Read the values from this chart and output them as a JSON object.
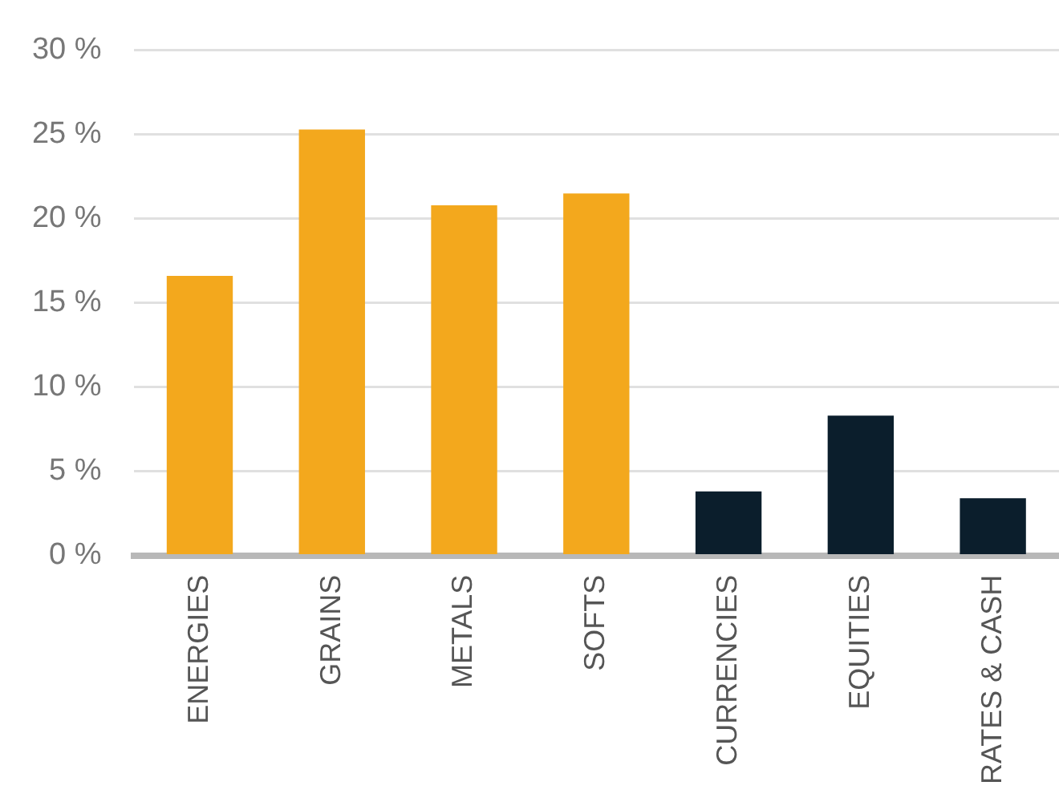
{
  "chart_data": {
    "type": "bar",
    "categories": [
      "ENERGIES",
      "GRAINS",
      "METALS",
      "SOFTS",
      "CURRENCIES",
      "EQUITIES",
      "RATES & CASH"
    ],
    "values": [
      16.6,
      25.3,
      20.8,
      21.5,
      3.8,
      8.3,
      3.4
    ],
    "colors": [
      "#f3a81d",
      "#f3a81d",
      "#f3a81d",
      "#f3a81d",
      "#0b1e2c",
      "#0b1e2c",
      "#0b1e2c"
    ],
    "ylim": [
      0,
      30
    ],
    "yticks": [
      {
        "value": 0,
        "label": "0 %"
      },
      {
        "value": 5,
        "label": "5 %"
      },
      {
        "value": 10,
        "label": "10 %"
      },
      {
        "value": 15,
        "label": "15 %"
      },
      {
        "value": 20,
        "label": "20 %"
      },
      {
        "value": 25,
        "label": "25 %"
      },
      {
        "value": 30,
        "label": "30 %"
      }
    ],
    "grid": "y",
    "legend": false
  }
}
